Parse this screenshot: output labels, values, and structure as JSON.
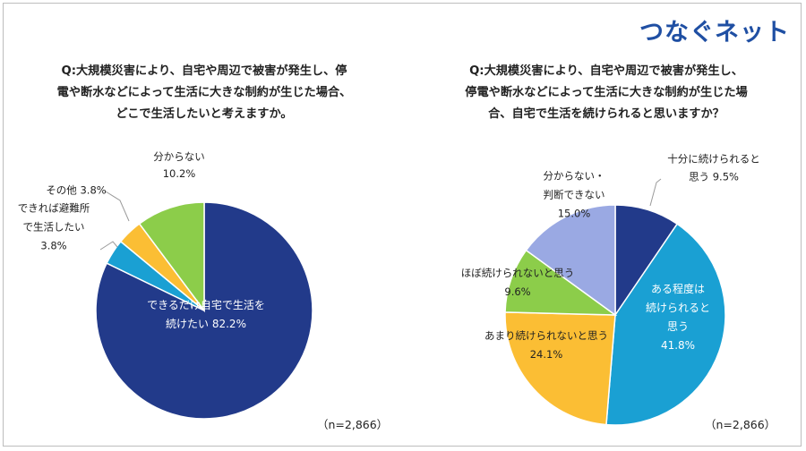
{
  "brand": "つなぐネット",
  "chart_data": [
    {
      "type": "pie",
      "title_lines": [
        "Q:大規模災害により、自宅や周辺で被害が発生し、停",
        "電や断水などによって生活に大きな制約が生じた場合、",
        "どこで生活したいと考えますか。"
      ],
      "sample": "（n=2,866）",
      "slices": [
        {
          "key": "home",
          "lines": [
            "できるだけ自宅で生活を",
            "続けたい 82.2%"
          ],
          "value": 82.2,
          "color": "#223a8a"
        },
        {
          "key": "shelter",
          "lines": [
            "できれば避難所",
            "で生活したい",
            "3.8%"
          ],
          "value": 3.8,
          "color": "#1aa0d3"
        },
        {
          "key": "other",
          "lines": [
            "その他 3.8%"
          ],
          "value": 3.8,
          "color": "#fbbe34"
        },
        {
          "key": "unknown",
          "lines": [
            "分からない",
            "10.2%"
          ],
          "value": 10.2,
          "color": "#8ccd4a"
        }
      ]
    },
    {
      "type": "pie",
      "title_lines": [
        "Q:大規模災害により、自宅や周辺で被害が発生し、",
        "停電や断水などによって生活に大きな制約が生じた場",
        "合、自宅で生活を続けられると思いますか？"
      ],
      "sample": "（n=2,866）",
      "slices": [
        {
          "key": "fully",
          "lines": [
            "十分に続けられると",
            "思う 9.5%"
          ],
          "value": 9.5,
          "color": "#223a8a"
        },
        {
          "key": "somewhat",
          "lines": [
            "ある程度は",
            "続けられると",
            "思う",
            "41.8%"
          ],
          "value": 41.8,
          "color": "#1aa0d3"
        },
        {
          "key": "not_much",
          "lines": [
            "あまり続けられないと思う",
            "24.1%"
          ],
          "value": 24.1,
          "color": "#fbbe34"
        },
        {
          "key": "hardly",
          "lines": [
            "ほぼ続けられないと思う",
            "9.6%"
          ],
          "value": 9.6,
          "color": "#8ccd4a"
        },
        {
          "key": "unsure",
          "lines": [
            "分からない・",
            "判断できない",
            "15.0%"
          ],
          "value": 15.0,
          "color": "#9aa9e3"
        }
      ]
    }
  ]
}
